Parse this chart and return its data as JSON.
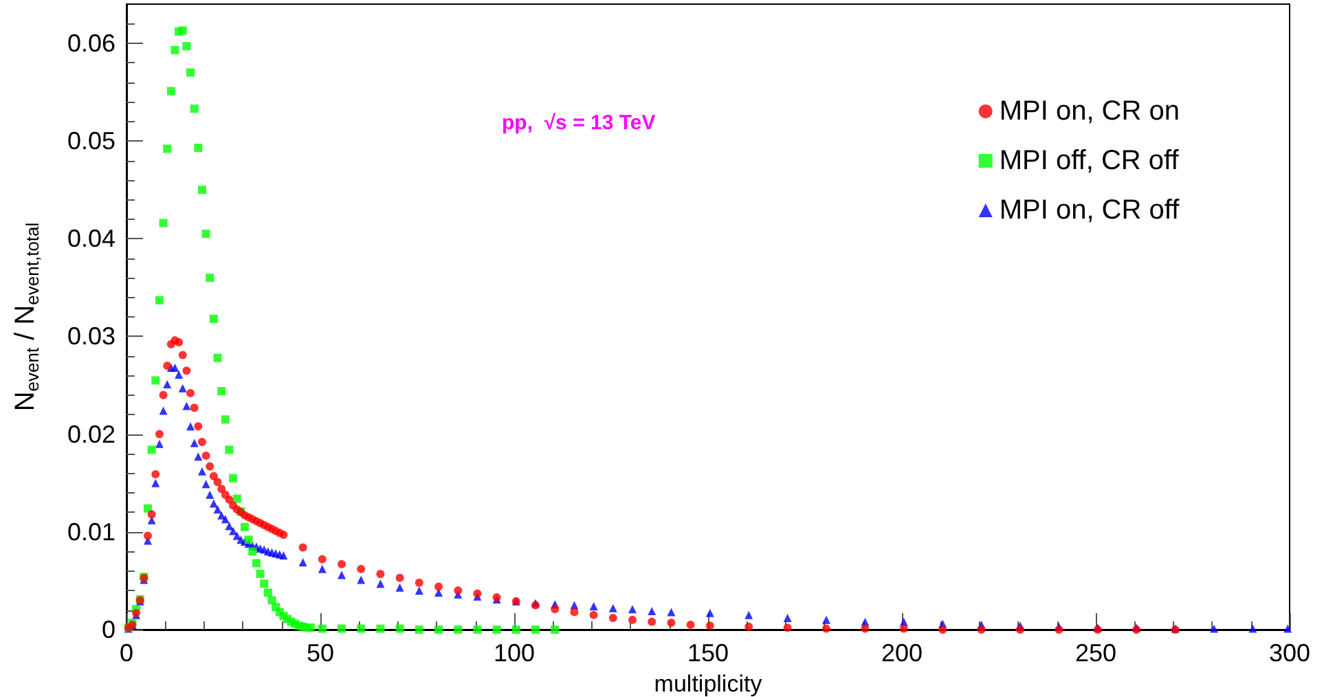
{
  "chart_data": {
    "type": "scatter",
    "xlabel": "multiplicity",
    "ylabel": "N$_{event}$ / N$_{event,total}$",
    "annotations": [
      "pp,  √s = 13 TeV"
    ],
    "xlim": [
      0,
      300
    ],
    "xticks": [
      0,
      50,
      100,
      150,
      200,
      250,
      300
    ],
    "ylim": [
      0,
      0.064
    ],
    "yticks": [
      0,
      0.01,
      0.02,
      0.03,
      0.04,
      0.05,
      0.06
    ],
    "grid": false,
    "legend": "top right",
    "series": [
      {
        "name": "MPI on, CR on",
        "color": "#ff0000",
        "marker": "circle",
        "x": [
          0.5,
          1.5,
          2.5,
          3.5,
          4.5,
          5.5,
          6.5,
          7.5,
          8.5,
          9.5,
          10.5,
          11.5,
          12.5,
          13.5,
          14.5,
          15.5,
          16.5,
          17.5,
          18.5,
          19.5,
          20.5,
          21.5,
          22.5,
          23.5,
          24.5,
          25.5,
          26.5,
          27.5,
          28.5,
          29.5,
          30.5,
          31.5,
          32.5,
          33.5,
          34.5,
          35.5,
          36.5,
          37.5,
          38.5,
          39.5,
          40.5,
          45.5,
          50.5,
          55.5,
          60.5,
          65.5,
          70.5,
          75.5,
          80.5,
          85.5,
          90.5,
          95.5,
          100.5,
          105.5,
          110.5,
          115.5,
          120.5,
          125.5,
          130.5,
          135.5,
          140.5,
          145.5,
          150.5,
          160.5,
          170.5,
          180.5,
          190.5,
          200.5,
          210.5,
          220.5,
          230.5,
          240.5,
          250.5,
          260.5,
          270.5
        ],
        "values": [
          0.0002,
          0.0005,
          0.0017,
          0.003,
          0.0053,
          0.0096,
          0.0118,
          0.0159,
          0.02,
          0.024,
          0.027,
          0.0292,
          0.0296,
          0.0294,
          0.0281,
          0.0265,
          0.0242,
          0.0227,
          0.0208,
          0.0192,
          0.0178,
          0.0167,
          0.0157,
          0.0151,
          0.0144,
          0.0138,
          0.0133,
          0.0127,
          0.0123,
          0.012,
          0.0117,
          0.0115,
          0.0113,
          0.0111,
          0.0109,
          0.0107,
          0.0105,
          0.0103,
          0.0101,
          0.0099,
          0.0097,
          0.0084,
          0.0072,
          0.0067,
          0.0062,
          0.0057,
          0.0053,
          0.0048,
          0.0044,
          0.004,
          0.0037,
          0.0033,
          0.0029,
          0.0025,
          0.0021,
          0.0018,
          0.0015,
          0.0012,
          0.001,
          0.0008,
          0.0007,
          0.0005,
          0.0004,
          0.0003,
          0.0002,
          0.0001,
          0.0001,
          0.0001,
          0,
          0,
          0,
          0,
          0,
          0,
          0
        ]
      },
      {
        "name": "MPI off, CR off",
        "color": "#00ff00",
        "marker": "square",
        "x": [
          0.5,
          1.5,
          2.5,
          3.5,
          4.5,
          5.5,
          6.5,
          7.5,
          8.5,
          9.5,
          10.5,
          11.5,
          12.5,
          13.5,
          14.5,
          15.5,
          16.5,
          17.5,
          18.5,
          19.5,
          20.5,
          21.5,
          22.5,
          23.5,
          24.5,
          25.5,
          26.5,
          27.5,
          28.5,
          29.5,
          30.5,
          31.5,
          32.5,
          33.5,
          34.5,
          35.5,
          36.5,
          37.5,
          38.5,
          39.5,
          40.5,
          41.5,
          42.5,
          43.5,
          44.5,
          45.5,
          46.5,
          47.5,
          50.5,
          55.5,
          60.5,
          65.5,
          70.5,
          75.5,
          80.5,
          85.5,
          90.5,
          95.5,
          100.5,
          105.5,
          110.5
        ],
        "values": [
          0.0002,
          0.0007,
          0.0021,
          0.0031,
          0.0054,
          0.0124,
          0.0184,
          0.0255,
          0.0337,
          0.0416,
          0.0492,
          0.0551,
          0.0593,
          0.0612,
          0.0613,
          0.0597,
          0.057,
          0.0533,
          0.0493,
          0.045,
          0.0405,
          0.036,
          0.0318,
          0.0278,
          0.0244,
          0.0215,
          0.0184,
          0.0155,
          0.0134,
          0.0121,
          0.0105,
          0.0092,
          0.008,
          0.0068,
          0.0057,
          0.0047,
          0.0038,
          0.003,
          0.0023,
          0.0018,
          0.0014,
          0.0011,
          0.0008,
          0.0006,
          0.0004,
          0.0003,
          0.0002,
          0.0002,
          0.0001,
          0.0001,
          0.0001,
          0.0001,
          0.0001,
          0,
          0,
          0,
          0,
          0,
          0,
          0,
          0
        ]
      },
      {
        "name": "MPI on, CR off",
        "color": "#0000ff",
        "marker": "triangle",
        "x": [
          0.5,
          1.5,
          2.5,
          3.5,
          4.5,
          5.5,
          6.5,
          7.5,
          8.5,
          9.5,
          10.5,
          11.5,
          12.5,
          13.5,
          14.5,
          15.5,
          16.5,
          17.5,
          18.5,
          19.5,
          20.5,
          21.5,
          22.5,
          23.5,
          24.5,
          25.5,
          26.5,
          27.5,
          28.5,
          29.5,
          30.5,
          31.5,
          32.5,
          33.5,
          34.5,
          35.5,
          36.5,
          37.5,
          38.5,
          39.5,
          40.5,
          45.5,
          50.5,
          55.5,
          60.5,
          65.5,
          70.5,
          75.5,
          80.5,
          85.5,
          90.5,
          95.5,
          100.5,
          105.5,
          110.5,
          115.5,
          120.5,
          125.5,
          130.5,
          135.5,
          140.5,
          150.5,
          160.5,
          170.5,
          180.5,
          190.5,
          200.5,
          210.5,
          220.5,
          230.5,
          240.5,
          250.5,
          260.5,
          270.5,
          280.5,
          290.5,
          299.5
        ],
        "values": [
          0.0001,
          0.0005,
          0.0015,
          0.0029,
          0.0051,
          0.0091,
          0.0112,
          0.015,
          0.019,
          0.0224,
          0.0251,
          0.0268,
          0.0268,
          0.0261,
          0.0247,
          0.0229,
          0.0208,
          0.0191,
          0.0177,
          0.0162,
          0.0149,
          0.0138,
          0.0129,
          0.0123,
          0.0117,
          0.0113,
          0.0106,
          0.0101,
          0.0096,
          0.0092,
          0.009,
          0.0088,
          0.0086,
          0.0085,
          0.0083,
          0.0082,
          0.008,
          0.0079,
          0.0078,
          0.0077,
          0.0076,
          0.0069,
          0.0062,
          0.0056,
          0.0051,
          0.0047,
          0.0043,
          0.004,
          0.0038,
          0.0036,
          0.0034,
          0.0031,
          0.0029,
          0.0027,
          0.0026,
          0.0025,
          0.0024,
          0.0022,
          0.0021,
          0.0019,
          0.0018,
          0.0017,
          0.0015,
          0.0012,
          0.001,
          0.0008,
          0.0008,
          0.0006,
          0.0005,
          0.0004,
          0.0003,
          0.0002,
          0.0002,
          0.0001,
          0.0001,
          0.0001,
          0.0001
        ]
      }
    ]
  }
}
